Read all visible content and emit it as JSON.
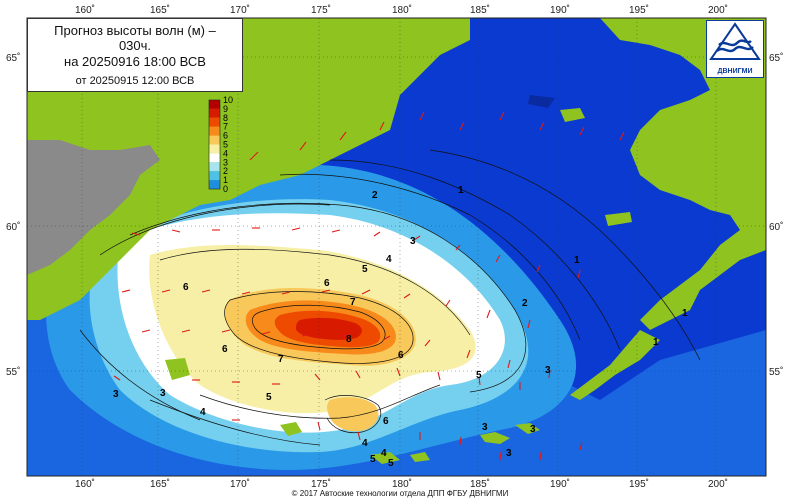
{
  "title": {
    "line1": "Прогноз высоты волн (м) –",
    "line1b": "030ч.",
    "line2": "на 20250916 18:00 ВСВ",
    "line3": "от 20250915 12:00 ВСВ"
  },
  "logo_text": "ДВНИГМИ",
  "copyright": "© 2017 Автоские технологии отдела ДПП ФГБУ ДВНИГМИ",
  "longitude_labels": [
    "160˚",
    "165˚",
    "170˚",
    "175˚",
    "180˚",
    "185˚",
    "190˚",
    "195˚",
    "200˚"
  ],
  "latitude_labels": [
    "65˚",
    "60˚",
    "55˚"
  ],
  "legend": {
    "values": [
      "10",
      "9",
      "8",
      "7",
      "6",
      "5",
      "4",
      "3",
      "2",
      "1",
      "0"
    ],
    "colors": [
      "#b40000",
      "#d81a00",
      "#ee4a00",
      "#f78a1a",
      "#f8c85a",
      "#f7efa6",
      "#ffffff",
      "#a8e4f0",
      "#4dc2e6",
      "#1e8ee0",
      "#0a3fd0"
    ]
  },
  "contour_labels": [
    "1",
    "1",
    "1",
    "1",
    "2",
    "3",
    "4",
    "5",
    "6",
    "6",
    "7",
    "8",
    "7",
    "6",
    "5",
    "6",
    "5",
    "4",
    "3",
    "3",
    "3",
    "4",
    "5",
    "2",
    "3",
    "3",
    "3",
    "4",
    "5",
    "6"
  ],
  "colors": {
    "land": "#8fc320",
    "land_dark": "#8a8a8a",
    "sea_deep": "#0a30c8",
    "arrow": "#e01818"
  }
}
